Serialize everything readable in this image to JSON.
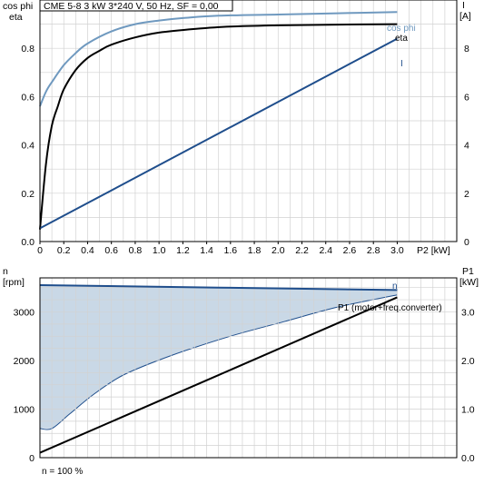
{
  "colors": {
    "cos_phi": "#6f99bf",
    "eta": "#000000",
    "current": "#1f4e8c",
    "speed": "#1f4e8c",
    "speed_fill": "#c9d8e6",
    "p1": "#000000",
    "power_range_edge": "#1f4e8c",
    "grid": "#d2d2d2",
    "axis": "#000000"
  },
  "chart_data": [
    {
      "type": "line",
      "title": "CME 5-8   3 kW   3*240 V, 50 Hz, SF = 0,00",
      "xlabel": "P2 [kW]",
      "ylabel_left": [
        "cos phi",
        "eta"
      ],
      "ylabel_right": [
        "I",
        "[A]"
      ],
      "xlim": [
        0,
        3.5
      ],
      "ylim_left": [
        0,
        1.0
      ],
      "ylim_right": [
        0,
        10
      ],
      "x_ticks": [
        "0",
        "0.2",
        "0.4",
        "0.6",
        "0.8",
        "1.0",
        "1.2",
        "1.4",
        "1.6",
        "1.8",
        "2.0",
        "2.2",
        "2.4",
        "2.6",
        "2.8",
        "3.0"
      ],
      "y_ticks_left": [
        "0.0",
        "0.2",
        "0.4",
        "0.6",
        "0.8"
      ],
      "y_ticks_right": [
        "0",
        "2",
        "4",
        "6",
        "8"
      ],
      "grid": true,
      "series": [
        {
          "name": "cos phi",
          "axis": "left",
          "x": [
            0,
            0.05,
            0.1,
            0.2,
            0.3,
            0.4,
            0.6,
            0.8,
            1.0,
            1.2,
            1.5,
            2.0,
            2.5,
            3.0
          ],
          "y": [
            0.56,
            0.62,
            0.66,
            0.73,
            0.78,
            0.82,
            0.87,
            0.9,
            0.915,
            0.925,
            0.935,
            0.94,
            0.945,
            0.95
          ]
        },
        {
          "name": "eta",
          "axis": "left",
          "x": [
            0,
            0.05,
            0.1,
            0.15,
            0.2,
            0.3,
            0.4,
            0.5,
            0.6,
            0.8,
            1.0,
            1.3,
            1.6,
            2.0,
            2.5,
            3.0
          ],
          "y": [
            0.05,
            0.32,
            0.48,
            0.56,
            0.63,
            0.71,
            0.76,
            0.79,
            0.815,
            0.845,
            0.865,
            0.88,
            0.89,
            0.895,
            0.898,
            0.9
          ]
        },
        {
          "name": "I",
          "axis": "right",
          "x": [
            0,
            3.0
          ],
          "y": [
            0.55,
            8.4
          ]
        }
      ]
    },
    {
      "type": "area",
      "xlabel": "",
      "ylabel_left": [
        "n",
        "[rpm]"
      ],
      "ylabel_right": [
        "P1",
        "[kW]"
      ],
      "xlim": [
        0,
        3.5
      ],
      "ylim_left": [
        0,
        3700
      ],
      "ylim_right": [
        0,
        3.7
      ],
      "y_ticks_left": [
        "0",
        "1000",
        "2000",
        "3000"
      ],
      "y_ticks_right": [
        "0.0",
        "1.0",
        "2.0",
        "3.0"
      ],
      "grid": true,
      "annotation": "n = 100 %",
      "series": [
        {
          "name": "n",
          "axis": "left",
          "x": [
            0,
            3.0
          ],
          "y": [
            3550,
            3450
          ]
        },
        {
          "name": "P1 (motor+freq.converter)",
          "axis": "right",
          "x": [
            0,
            3.0
          ],
          "y": [
            0.1,
            3.3
          ]
        }
      ],
      "fill_lower_boundary": {
        "axis": "left",
        "x": [
          0,
          0.1,
          0.25,
          0.45,
          0.7,
          1.1,
          1.6,
          2.05,
          2.5,
          3.0
        ],
        "y": [
          600,
          600,
          900,
          1300,
          1700,
          2100,
          2500,
          2800,
          3100,
          3350
        ]
      }
    }
  ]
}
